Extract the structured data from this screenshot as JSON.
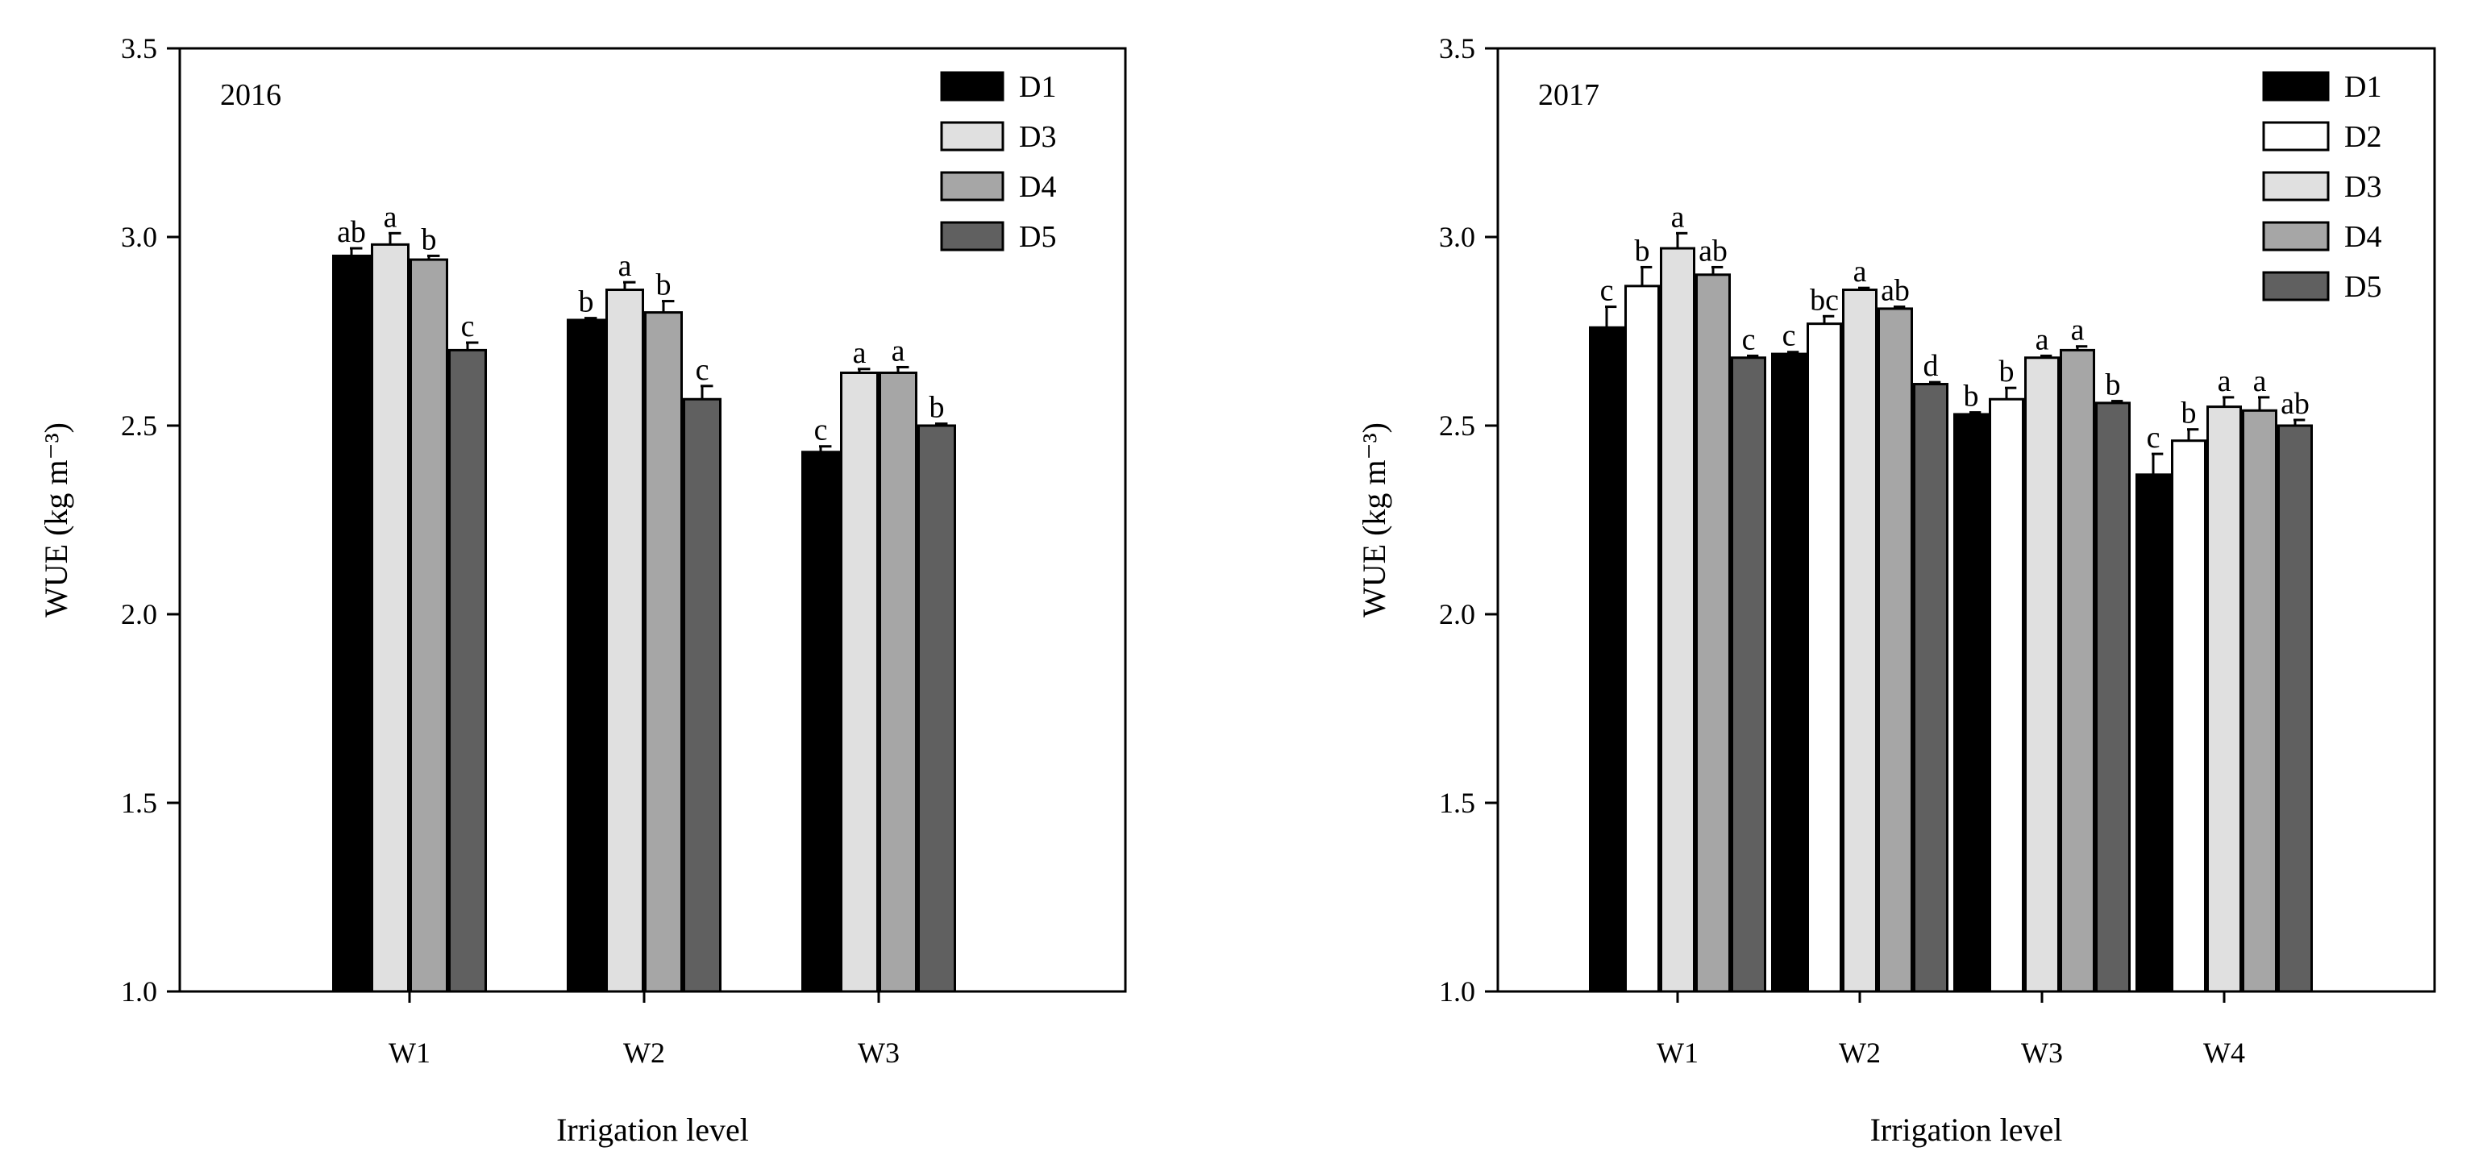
{
  "chart_data": [
    {
      "type": "bar",
      "title": "2016",
      "xlabel": "Irrigation level",
      "ylabel": "WUE (kg m⁻³)",
      "ylim": [
        1.0,
        3.5
      ],
      "yticks": [
        "1.0",
        "1.5",
        "2.0",
        "2.5",
        "3.0",
        "3.5"
      ],
      "grid": false,
      "legend_position": "top-right",
      "categories": [
        "W1",
        "W2",
        "W3"
      ],
      "series": [
        {
          "name": "D1",
          "color": "#000000",
          "values": [
            2.95,
            2.78,
            2.43
          ],
          "errors": [
            0.02,
            0.005,
            0.015
          ],
          "letters": [
            "ab",
            "b",
            "c"
          ]
        },
        {
          "name": "D3",
          "color": "#e0e0e0",
          "values": [
            2.98,
            2.86,
            2.64
          ],
          "errors": [
            0.03,
            0.02,
            0.01
          ],
          "letters": [
            "a",
            "a",
            "a"
          ]
        },
        {
          "name": "D4",
          "color": "#a6a6a6",
          "values": [
            2.94,
            2.8,
            2.64
          ],
          "errors": [
            0.01,
            0.03,
            0.015
          ],
          "letters": [
            "b",
            "b",
            "a"
          ]
        },
        {
          "name": "D5",
          "color": "#606060",
          "values": [
            2.7,
            2.57,
            2.5
          ],
          "errors": [
            0.02,
            0.035,
            0.005
          ],
          "letters": [
            "c",
            "c",
            "b"
          ]
        }
      ]
    },
    {
      "type": "bar",
      "title": "2017",
      "xlabel": "Irrigation level",
      "ylabel": "WUE (kg m⁻³)",
      "ylim": [
        1.0,
        3.5
      ],
      "yticks": [
        "1.0",
        "1.5",
        "2.0",
        "2.5",
        "3.0",
        "3.5"
      ],
      "grid": false,
      "legend_position": "top-right",
      "categories": [
        "W1",
        "W2",
        "W3",
        "W4"
      ],
      "series": [
        {
          "name": "D1",
          "color": "#000000",
          "values": [
            2.76,
            2.69,
            2.53,
            2.37
          ],
          "errors": [
            0.055,
            0.005,
            0.005,
            0.055
          ],
          "letters": [
            "c",
            "c",
            "b",
            "c"
          ]
        },
        {
          "name": "D2",
          "color": "#ffffff",
          "values": [
            2.87,
            2.77,
            2.57,
            2.46
          ],
          "errors": [
            0.05,
            0.02,
            0.03,
            0.03
          ],
          "letters": [
            "b",
            "bc",
            "b",
            "b"
          ]
        },
        {
          "name": "D3",
          "color": "#e0e0e0",
          "values": [
            2.97,
            2.86,
            2.68,
            2.55
          ],
          "errors": [
            0.04,
            0.005,
            0.005,
            0.025
          ],
          "letters": [
            "a",
            "a",
            "a",
            "a"
          ]
        },
        {
          "name": "D4",
          "color": "#a6a6a6",
          "values": [
            2.9,
            2.81,
            2.7,
            2.54
          ],
          "errors": [
            0.02,
            0.005,
            0.01,
            0.035
          ],
          "letters": [
            "ab",
            "ab",
            "a",
            "a"
          ]
        },
        {
          "name": "D5",
          "color": "#606060",
          "values": [
            2.68,
            2.61,
            2.56,
            2.5
          ],
          "errors": [
            0.005,
            0.005,
            0.005,
            0.015
          ],
          "letters": [
            "c",
            "d",
            "b",
            "ab"
          ]
        }
      ]
    }
  ]
}
